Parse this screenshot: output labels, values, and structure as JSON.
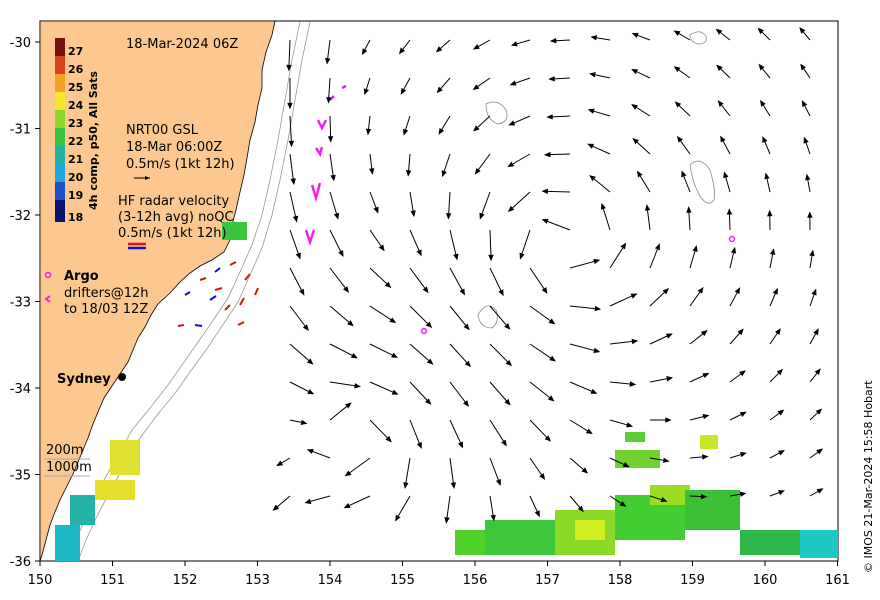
{
  "map": {
    "date_label": "18-Mar-2024 06Z",
    "copyright": "© IMOS 21-Mar-2024 15:58 Hobart",
    "x_ticks": [
      "150",
      "151",
      "152",
      "153",
      "154",
      "155",
      "156",
      "157",
      "158",
      "159",
      "160",
      "161"
    ],
    "y_ticks": [
      "-30",
      "-31",
      "-32",
      "-33",
      "-34",
      "-35",
      "-36"
    ],
    "land_color": "#fcc88f",
    "ocean_color": "#ffffff"
  },
  "colorbar": {
    "title": "4h comp, p50, All Sats",
    "labels": [
      "27",
      "26",
      "25",
      "24",
      "23",
      "22",
      "21",
      "20",
      "19",
      "18"
    ]
  },
  "legend": {
    "gsl_title": "NRT00 GSL",
    "gsl_time": "18-Mar 06:00Z",
    "gsl_scale": "0.5m/s (1kt 12h)",
    "hf_title": "HF radar velocity",
    "hf_avg": "(3-12h avg) noQC",
    "hf_scale": "0.5m/s (1kt 12h)",
    "argo": "Argo",
    "drifters_1": "drifters@12h",
    "drifters_2": "to 18/03 12Z",
    "city": "Sydney",
    "iso_200": "200m",
    "iso_1000": "1000m"
  }
}
